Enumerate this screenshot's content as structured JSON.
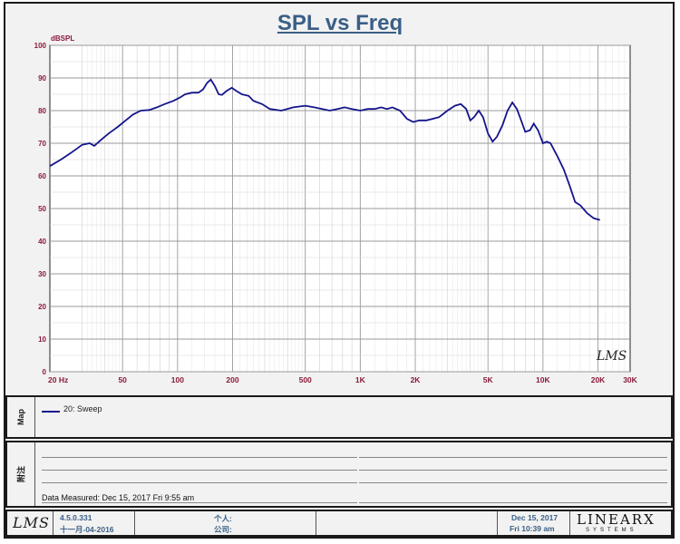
{
  "chart_data": {
    "type": "line",
    "title": "SPL vs Freq",
    "ylabel": "dBSPL",
    "xscale": "log",
    "xlim": [
      20,
      30000
    ],
    "ylim": [
      0,
      100
    ],
    "yticks": [
      "0",
      "10",
      "20",
      "30",
      "40",
      "50",
      "60",
      "70",
      "80",
      "90",
      "100"
    ],
    "xticks": [
      {
        "f": 20,
        "label": "20  Hz"
      },
      {
        "f": 50,
        "label": "50"
      },
      {
        "f": 100,
        "label": "100"
      },
      {
        "f": 200,
        "label": "200"
      },
      {
        "f": 500,
        "label": "500"
      },
      {
        "f": 1000,
        "label": "1K"
      },
      {
        "f": 2000,
        "label": "2K"
      },
      {
        "f": 5000,
        "label": "5K"
      },
      {
        "f": 10000,
        "label": "10K"
      },
      {
        "f": 20000,
        "label": "20K"
      },
      {
        "f": 30000,
        "label": "30K"
      }
    ],
    "grid": true,
    "series": [
      {
        "name": "20: Sweep",
        "color": "#14148c",
        "points": [
          [
            20,
            63
          ],
          [
            23,
            65
          ],
          [
            26,
            67
          ],
          [
            30,
            69.5
          ],
          [
            33,
            70
          ],
          [
            35,
            69.2
          ],
          [
            38,
            71
          ],
          [
            42,
            73
          ],
          [
            47,
            75
          ],
          [
            52,
            77
          ],
          [
            57,
            78.8
          ],
          [
            63,
            80
          ],
          [
            70,
            80.2
          ],
          [
            77,
            81
          ],
          [
            85,
            82
          ],
          [
            95,
            83
          ],
          [
            103,
            84
          ],
          [
            110,
            85
          ],
          [
            120,
            85.5
          ],
          [
            130,
            85.5
          ],
          [
            138,
            86.5
          ],
          [
            145,
            88.5
          ],
          [
            152,
            89.5
          ],
          [
            160,
            87.5
          ],
          [
            168,
            85
          ],
          [
            175,
            84.8
          ],
          [
            185,
            86
          ],
          [
            198,
            87
          ],
          [
            210,
            86
          ],
          [
            225,
            85
          ],
          [
            245,
            84.5
          ],
          [
            260,
            83
          ],
          [
            290,
            82
          ],
          [
            320,
            80.5
          ],
          [
            370,
            80
          ],
          [
            430,
            81
          ],
          [
            500,
            81.5
          ],
          [
            560,
            81
          ],
          [
            620,
            80.5
          ],
          [
            680,
            80
          ],
          [
            750,
            80.5
          ],
          [
            820,
            81
          ],
          [
            900,
            80.5
          ],
          [
            1000,
            80
          ],
          [
            1100,
            80.5
          ],
          [
            1200,
            80.5
          ],
          [
            1300,
            81
          ],
          [
            1400,
            80.5
          ],
          [
            1500,
            81
          ],
          [
            1650,
            80
          ],
          [
            1800,
            77.5
          ],
          [
            1950,
            76.5
          ],
          [
            2100,
            77
          ],
          [
            2300,
            77
          ],
          [
            2500,
            77.5
          ],
          [
            2700,
            78
          ],
          [
            3000,
            80
          ],
          [
            3300,
            81.5
          ],
          [
            3550,
            82
          ],
          [
            3800,
            80.5
          ],
          [
            4000,
            77
          ],
          [
            4200,
            78
          ],
          [
            4450,
            80
          ],
          [
            4700,
            78
          ],
          [
            5000,
            73
          ],
          [
            5300,
            70.5
          ],
          [
            5600,
            72
          ],
          [
            6000,
            75.5
          ],
          [
            6400,
            80
          ],
          [
            6800,
            82.5
          ],
          [
            7200,
            80.5
          ],
          [
            7600,
            77
          ],
          [
            8000,
            73.5
          ],
          [
            8500,
            74
          ],
          [
            8900,
            76
          ],
          [
            9400,
            74
          ],
          [
            10000,
            70
          ],
          [
            10500,
            70.5
          ],
          [
            11000,
            70
          ],
          [
            12000,
            66
          ],
          [
            13000,
            62
          ],
          [
            14000,
            57
          ],
          [
            15000,
            52
          ],
          [
            16000,
            51
          ],
          [
            17500,
            48.5
          ],
          [
            19000,
            47
          ],
          [
            20500,
            46.5
          ]
        ]
      }
    ]
  },
  "legend": {
    "map_label": "Map",
    "entry": "20: Sweep"
  },
  "notes": {
    "side_label": "附注",
    "measured": "Data Measured: Dec 15, 2017  Fri  9:55 am"
  },
  "footer": {
    "logo": "LMS",
    "version": "4.5.0.331",
    "build_date": "十一月-04-2016",
    "person_label": "个人:",
    "company_label": "公司:",
    "print_date": "Dec 15, 2017",
    "print_time": "Fri 10:39 am",
    "brand": "LINEARX",
    "brand_sub": "SYSTEMS"
  },
  "watermark": "LMS"
}
